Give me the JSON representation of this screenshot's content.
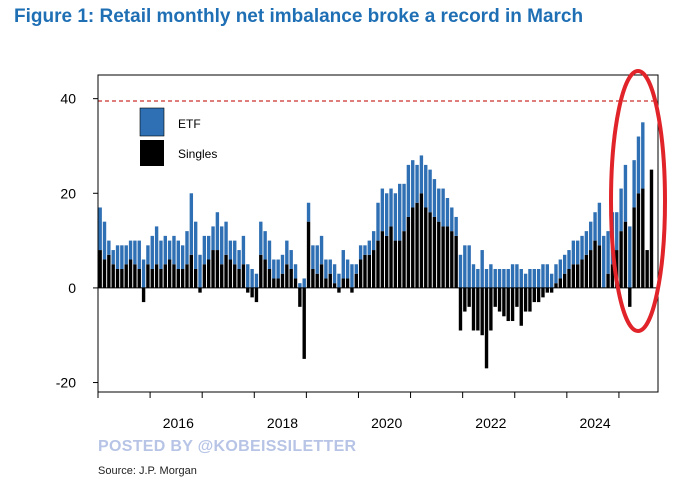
{
  "title": "Figure 1: Retail monthly net imbalance broke a record in March",
  "watermark": "POSTED BY @KOBEISSILETTER",
  "source": "Source: J.P. Morgan",
  "colors": {
    "title": "#1f6fb5",
    "etf": "#2f6fb3",
    "singles": "#000000",
    "record_line": "#cc2f2f",
    "highlight": "#e0242a"
  },
  "chart_data": {
    "type": "bar",
    "stacked": true,
    "x_ticks": [
      "2016",
      "2018",
      "2020",
      "2022",
      "2024"
    ],
    "y_ticks": [
      "-20",
      "0",
      "20",
      "40"
    ],
    "ylim": [
      -22,
      45
    ],
    "x_start": "2015-01",
    "reference_line": {
      "y": 39.5,
      "style": "dashed"
    },
    "legend": {
      "position": "top-left",
      "entries": [
        "ETF",
        "Singles"
      ]
    },
    "series": [
      {
        "name": "Singles",
        "values": [
          8,
          6,
          7,
          5,
          4,
          4,
          5,
          6,
          5,
          4,
          -3,
          5,
          4,
          5,
          4,
          5,
          6,
          5,
          4,
          4,
          5,
          7,
          4,
          -1,
          5,
          6,
          8,
          8,
          5,
          7,
          6,
          5,
          4,
          5,
          -1,
          -2,
          -3,
          7,
          6,
          4,
          2,
          2,
          3,
          5,
          4,
          2,
          -4,
          -15,
          14,
          4,
          3,
          5,
          2,
          3,
          1,
          -1,
          2,
          2,
          -1,
          3,
          6,
          7,
          7,
          8,
          10,
          12,
          11,
          13,
          10,
          10,
          12,
          15,
          17,
          18,
          20,
          17,
          16,
          15,
          14,
          13,
          13,
          12,
          11,
          -9,
          -5,
          -4,
          -9,
          -9,
          -10,
          -17,
          -9,
          -4,
          -5,
          -6,
          -7,
          -7,
          -4,
          -8,
          -5,
          -5,
          -3,
          -3,
          -2,
          -1,
          -1,
          1,
          2,
          3,
          4,
          5,
          5,
          6,
          7,
          8,
          10,
          9,
          0,
          3,
          5,
          8,
          12,
          14,
          -4,
          17,
          20,
          21,
          8,
          25
        ]
      },
      {
        "name": "ETF",
        "values": [
          9,
          8,
          3,
          3,
          5,
          5,
          4,
          4,
          5,
          6,
          6,
          4,
          7,
          8,
          6,
          6,
          4,
          6,
          6,
          5,
          7,
          13,
          10,
          7,
          6,
          5,
          5,
          8,
          8,
          7,
          4,
          5,
          4,
          6,
          5,
          4,
          3,
          7,
          6,
          6,
          4,
          4,
          4,
          5,
          4,
          3,
          1,
          2,
          4,
          5,
          6,
          6,
          4,
          3,
          4,
          3,
          6,
          4,
          5,
          2,
          3,
          2,
          3,
          4,
          8,
          9,
          9,
          8,
          10,
          12,
          10,
          11,
          10,
          8,
          8,
          9,
          9,
          8,
          7,
          8,
          6,
          5,
          4,
          7,
          9,
          9,
          5,
          4,
          8,
          4,
          5,
          4,
          4,
          4,
          4,
          5,
          5,
          4,
          3,
          4,
          4,
          4,
          5,
          5,
          3,
          4,
          4,
          4,
          4,
          5,
          5,
          5,
          5,
          6,
          6,
          9,
          11,
          9,
          11,
          8,
          9,
          12,
          13,
          10,
          12,
          14
        ]
      }
    ]
  }
}
